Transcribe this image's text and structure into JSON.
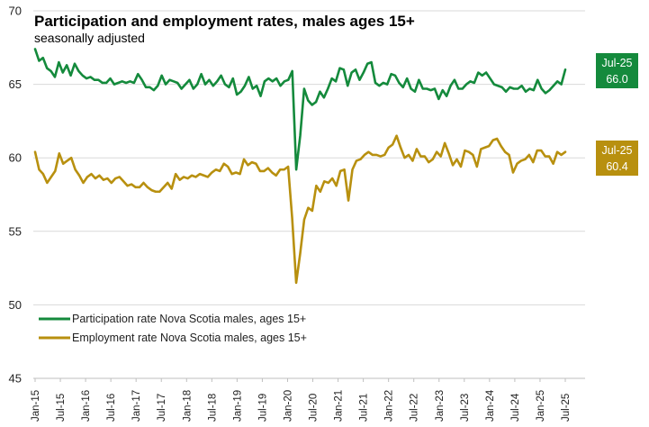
{
  "chart_data": {
    "type": "line",
    "title": "Participation and employment rates, males ages 15+",
    "subtitle": "seasonally adjusted",
    "xlabel": "",
    "ylabel": "",
    "ylim": [
      45,
      70
    ],
    "y_ticks": [
      "45",
      "50",
      "55",
      "60",
      "65",
      "70"
    ],
    "x_tick_labels": [
      "Jan-15",
      "Jul-15",
      "Jan-16",
      "Jul-16",
      "Jan-17",
      "Jul-17",
      "Jan-18",
      "Jul-18",
      "Jan-19",
      "Jul-19",
      "Jan-20",
      "Jul-20",
      "Jan-21",
      "Jul-21",
      "Jan-22",
      "Jul-22",
      "Jan-23",
      "Jul-23",
      "Jan-24",
      "Jul-24",
      "Jan-25",
      "Jul-25"
    ],
    "x_start": "Jan-15",
    "x_end": "Jul-25",
    "grid": "horizontal",
    "legend_position": "bottom-left",
    "series": [
      {
        "name": "Participation rate Nova Scotia males, ages 15+",
        "color": "#148a3c",
        "values": [
          67.4,
          66.6,
          66.8,
          66.1,
          65.9,
          65.5,
          66.5,
          65.8,
          66.3,
          65.6,
          66.4,
          65.9,
          65.6,
          65.4,
          65.5,
          65.3,
          65.3,
          65.1,
          65.1,
          65.4,
          65.0,
          65.1,
          65.2,
          65.1,
          65.2,
          65.1,
          65.7,
          65.3,
          64.8,
          64.8,
          64.6,
          64.9,
          65.6,
          65.0,
          65.3,
          65.2,
          65.1,
          64.7,
          65.0,
          65.3,
          64.7,
          65.0,
          65.7,
          65.0,
          65.3,
          64.9,
          65.2,
          65.6,
          65.0,
          64.8,
          65.4,
          64.3,
          64.5,
          64.9,
          65.5,
          64.7,
          64.9,
          64.2,
          65.2,
          65.4,
          65.2,
          65.4,
          64.9,
          65.2,
          65.3,
          65.9,
          59.2,
          61.5,
          64.7,
          63.9,
          63.6,
          63.8,
          64.5,
          64.1,
          64.7,
          65.4,
          65.2,
          66.1,
          66.0,
          64.9,
          65.8,
          66.0,
          65.3,
          65.8,
          66.4,
          66.5,
          65.1,
          64.9,
          65.1,
          65.0,
          65.7,
          65.6,
          65.1,
          64.8,
          65.4,
          64.7,
          64.5,
          65.3,
          64.7,
          64.7,
          64.6,
          64.7,
          64.0,
          64.6,
          64.2,
          64.9,
          65.3,
          64.7,
          64.7,
          65.0,
          65.2,
          65.1,
          65.8,
          65.6,
          65.8,
          65.4,
          65.0,
          64.9,
          64.8,
          64.5,
          64.8,
          64.7,
          64.7,
          64.9,
          64.5,
          64.7,
          64.6,
          65.3,
          64.7,
          64.4,
          64.6,
          64.9,
          65.2,
          65.0,
          66.0
        ]
      },
      {
        "name": "Employment rate Nova Scotia males, ages 15+",
        "color": "#b8900f",
        "values": [
          60.4,
          59.2,
          58.9,
          58.3,
          58.7,
          59.1,
          60.3,
          59.6,
          59.8,
          60.0,
          59.2,
          58.8,
          58.3,
          58.7,
          58.9,
          58.6,
          58.8,
          58.5,
          58.6,
          58.3,
          58.6,
          58.7,
          58.4,
          58.1,
          58.2,
          58.0,
          58.0,
          58.3,
          58.0,
          57.8,
          57.7,
          57.7,
          58.0,
          58.3,
          57.9,
          58.9,
          58.5,
          58.7,
          58.6,
          58.8,
          58.7,
          58.9,
          58.8,
          58.7,
          59.0,
          59.2,
          59.1,
          59.6,
          59.4,
          58.9,
          59.0,
          58.9,
          59.9,
          59.5,
          59.7,
          59.6,
          59.1,
          59.1,
          59.3,
          59.0,
          58.8,
          59.2,
          59.2,
          59.4,
          55.9,
          51.5,
          53.5,
          55.8,
          56.6,
          56.4,
          58.1,
          57.7,
          58.4,
          58.3,
          58.6,
          58.1,
          59.1,
          59.2,
          57.1,
          59.2,
          59.8,
          59.9,
          60.2,
          60.4,
          60.2,
          60.2,
          60.1,
          60.2,
          60.7,
          60.9,
          61.5,
          60.7,
          60.0,
          60.2,
          59.8,
          60.6,
          60.1,
          60.1,
          59.7,
          59.9,
          60.4,
          60.1,
          61.0,
          60.3,
          59.5,
          59.9,
          59.4,
          60.5,
          60.4,
          60.2,
          59.4,
          60.6,
          60.7,
          60.8,
          61.2,
          61.3,
          60.8,
          60.4,
          60.2,
          59.0,
          59.6,
          59.8,
          59.9,
          60.2,
          59.7,
          60.5,
          60.5,
          60.1,
          60.1,
          59.6,
          60.4,
          60.2,
          60.4
        ]
      }
    ],
    "callouts": [
      {
        "label": "Jul-25",
        "value": "66.0"
      },
      {
        "label": "Jul-25",
        "value": "60.4"
      }
    ]
  }
}
